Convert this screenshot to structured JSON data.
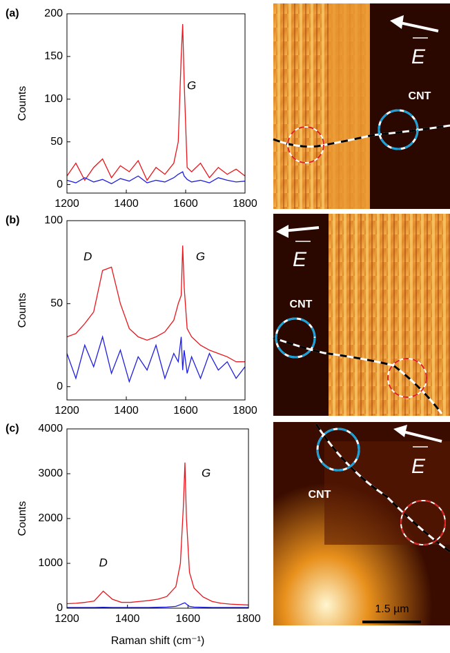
{
  "chart_data": [
    {
      "type": "line",
      "panel": "(a)",
      "ylabel": "Counts",
      "annotations": [
        "G"
      ],
      "x": [
        1200,
        1230,
        1260,
        1290,
        1320,
        1350,
        1380,
        1410,
        1440,
        1470,
        1500,
        1530,
        1560,
        1575,
        1585,
        1590,
        1595,
        1605,
        1620,
        1650,
        1680,
        1710,
        1740,
        1770,
        1800
      ],
      "series": [
        {
          "color": "#e8141b",
          "values": [
            10,
            25,
            5,
            20,
            30,
            8,
            22,
            15,
            28,
            5,
            20,
            12,
            25,
            50,
            150,
            188,
            120,
            20,
            15,
            25,
            8,
            20,
            12,
            18,
            10
          ]
        },
        {
          "color": "#1d1de0",
          "values": [
            5,
            2,
            8,
            3,
            6,
            1,
            7,
            4,
            10,
            2,
            5,
            3,
            8,
            12,
            14,
            15,
            10,
            6,
            3,
            5,
            2,
            8,
            5,
            3,
            4
          ]
        }
      ],
      "xlim": [
        1200,
        1800
      ],
      "xticks": [
        1200,
        1400,
        1600,
        1800
      ],
      "ylim": [
        -10,
        200
      ],
      "yticks": [
        0,
        50,
        100,
        150,
        200
      ]
    },
    {
      "type": "line",
      "panel": "(b)",
      "ylabel": "Counts",
      "annotations": [
        "D",
        "G"
      ],
      "x": [
        1200,
        1230,
        1260,
        1290,
        1320,
        1350,
        1380,
        1410,
        1440,
        1470,
        1500,
        1530,
        1560,
        1575,
        1585,
        1590,
        1595,
        1605,
        1620,
        1650,
        1680,
        1710,
        1740,
        1770,
        1800
      ],
      "series": [
        {
          "color": "#e8141b",
          "values": [
            30,
            32,
            38,
            45,
            70,
            72,
            50,
            35,
            30,
            28,
            30,
            33,
            40,
            50,
            55,
            85,
            60,
            35,
            30,
            25,
            22,
            20,
            18,
            15,
            15
          ]
        },
        {
          "color": "#1d1de0",
          "values": [
            20,
            5,
            25,
            12,
            30,
            8,
            22,
            3,
            18,
            10,
            25,
            5,
            20,
            15,
            30,
            10,
            22,
            8,
            18,
            5,
            20,
            10,
            15,
            5,
            12
          ]
        }
      ],
      "xlim": [
        1200,
        1800
      ],
      "xticks": [
        1200,
        1400,
        1600,
        1800
      ],
      "ylim": [
        -8,
        100
      ],
      "yticks": [
        0,
        50,
        100
      ]
    },
    {
      "type": "line",
      "panel": "(c)",
      "ylabel": "Counts",
      "xlabel": "Raman shift (cm⁻¹)",
      "annotations": [
        "D",
        "G"
      ],
      "x": [
        1200,
        1230,
        1260,
        1290,
        1320,
        1350,
        1380,
        1410,
        1440,
        1470,
        1500,
        1530,
        1560,
        1575,
        1585,
        1590,
        1595,
        1605,
        1620,
        1650,
        1680,
        1710,
        1740,
        1770,
        1800
      ],
      "series": [
        {
          "color": "#e8141b",
          "values": [
            100,
            110,
            130,
            160,
            380,
            200,
            130,
            130,
            150,
            170,
            200,
            260,
            480,
            1000,
            2300,
            3250,
            2000,
            800,
            450,
            250,
            150,
            110,
            90,
            80,
            70
          ]
        },
        {
          "color": "#1d1de0",
          "values": [
            15,
            15,
            15,
            15,
            20,
            15,
            15,
            15,
            15,
            15,
            20,
            25,
            40,
            80,
            110,
            120,
            90,
            40,
            25,
            20,
            15,
            15,
            15,
            15,
            15
          ]
        }
      ],
      "xlim": [
        1200,
        1800
      ],
      "xticks": [
        1200,
        1400,
        1600,
        1800
      ],
      "ylim": [
        0,
        4000
      ],
      "yticks": [
        0,
        1000,
        2000,
        3000,
        4000
      ]
    }
  ],
  "images": [
    {
      "tube": "CNT",
      "field": "E"
    },
    {
      "tube": "CNT",
      "field": "E"
    },
    {
      "tube": "CNT",
      "field": "E",
      "scale_bar": "1.5 µm"
    }
  ]
}
